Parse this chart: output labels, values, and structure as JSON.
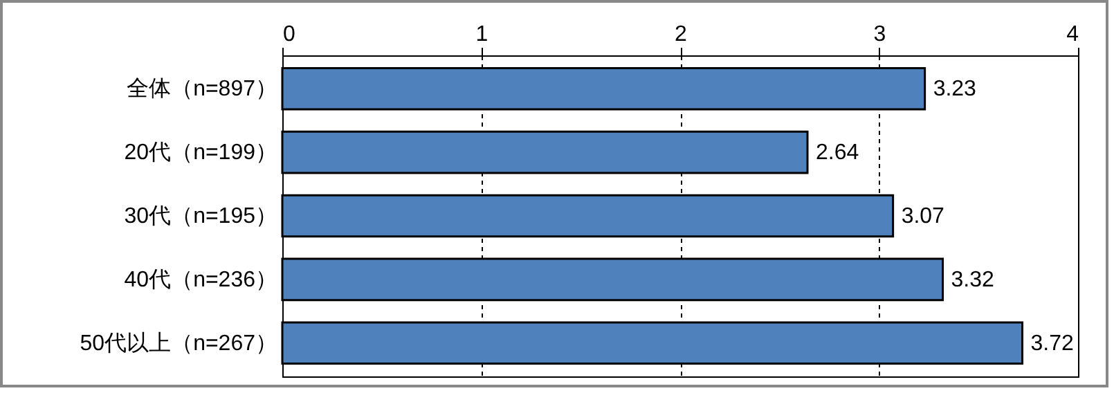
{
  "chart_data": {
    "type": "bar",
    "orientation": "horizontal",
    "categories": [
      "全体（n=897）",
      "20代（n=199）",
      "30代（n=195）",
      "40代（n=236）",
      "50代以上（n=267）"
    ],
    "values": [
      3.23,
      2.64,
      3.07,
      3.32,
      3.72
    ],
    "color": "#4f81bd",
    "xlim": [
      0,
      4
    ],
    "xticks": [
      0,
      1,
      2,
      3,
      4
    ],
    "grid": true,
    "data_labels": true
  }
}
